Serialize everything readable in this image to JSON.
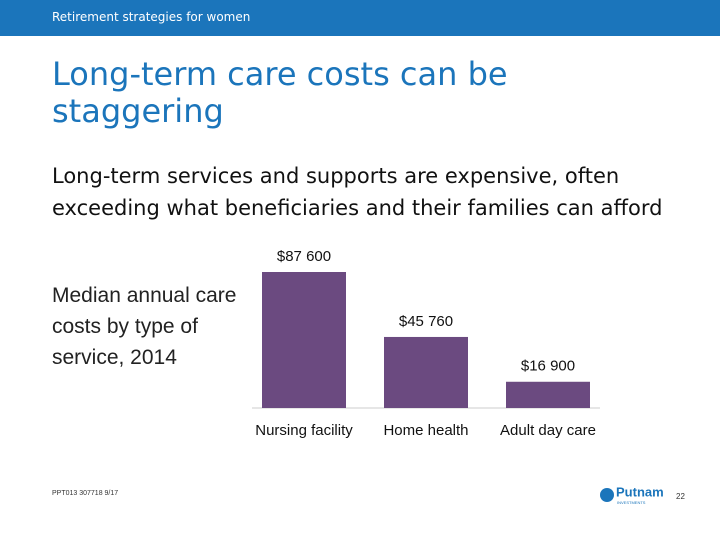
{
  "header": {
    "section": "Retirement strategies for women"
  },
  "title": "Long-term care costs can be staggering",
  "body": "Long-term services and supports are expensive, often exceeding what beneficiaries and their families can afford",
  "chart_data": {
    "type": "bar",
    "title": "Median annual care costs by type of service, 2014",
    "categories": [
      "Nursing facility",
      "Home health",
      "Adult day care"
    ],
    "values": [
      87600,
      45760,
      16900
    ],
    "value_labels": [
      "$87 600",
      "$45 760",
      "$16 900"
    ],
    "color": "#6b4a80"
  },
  "footer": {
    "code": "PPT013 307718 9/17",
    "logo": "Putnam",
    "logo_sub": "INVESTMENTS",
    "page": "22"
  }
}
